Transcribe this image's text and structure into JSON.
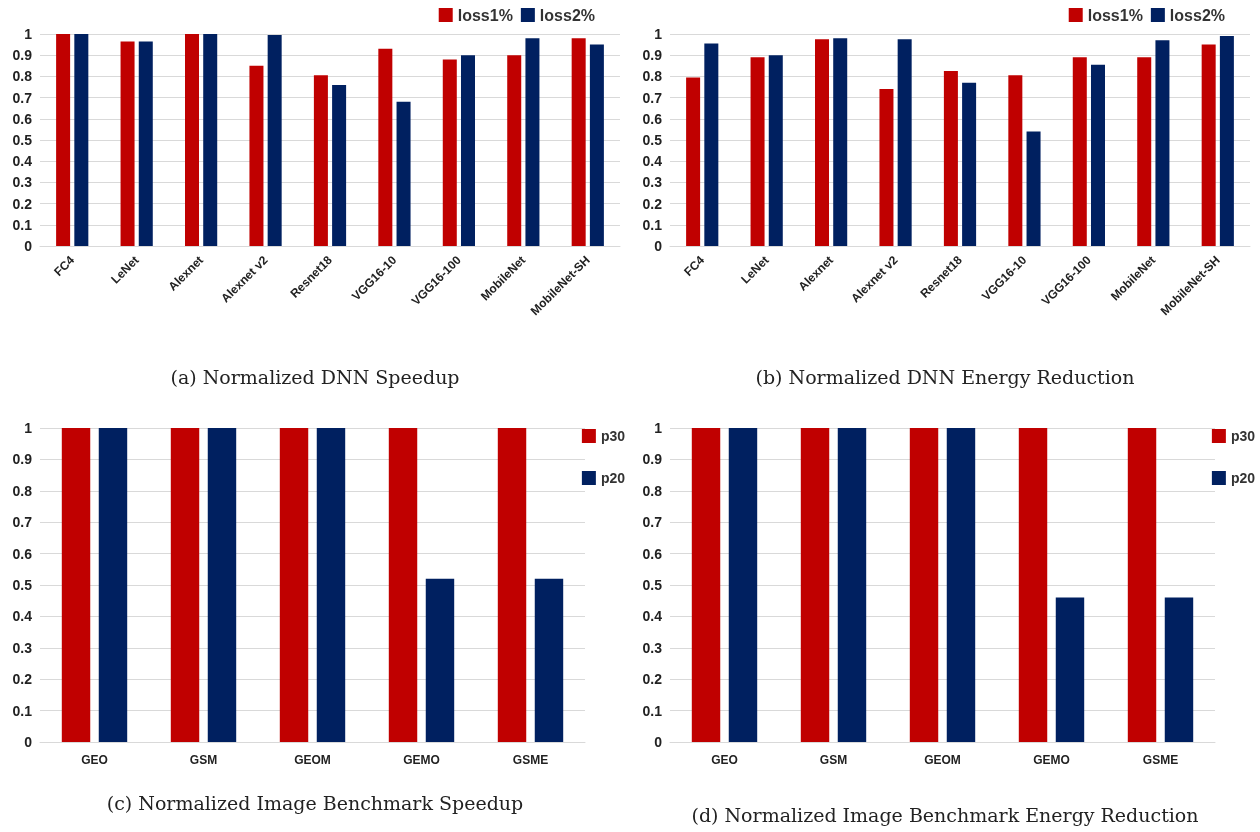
{
  "chart_data": [
    {
      "type": "bar",
      "title": "(a) Normalized DNN Speedup",
      "categories": [
        "FC4",
        "LeNet",
        "Alexnet",
        "Alexnet v2",
        "Resnet18",
        "VGG16-10",
        "VGG16-100",
        "MobileNet",
        "MobileNet-SH"
      ],
      "series": [
        {
          "name": "loss1%",
          "color": "#c00000",
          "values": [
            1,
            0.965,
            1,
            0.85,
            0.805,
            0.93,
            0.88,
            0.9,
            0.98
          ]
        },
        {
          "name": "loss2%",
          "color": "#002060",
          "values": [
            1,
            0.965,
            1,
            0.995,
            0.76,
            0.68,
            0.9,
            0.98,
            0.95
          ]
        }
      ],
      "ylim": [
        0,
        1
      ],
      "yticks": [
        0,
        0.1,
        0.2,
        0.3,
        0.4,
        0.5,
        0.6,
        0.7,
        0.8,
        0.9,
        1
      ],
      "grid": "y",
      "legend": "top right"
    },
    {
      "type": "bar",
      "title": "(b) Normalized DNN Energy Reduction",
      "categories": [
        "FC4",
        "LeNet",
        "Alexnet",
        "Alexnet v2",
        "Resnet18",
        "VGG16-10",
        "VGG16-100",
        "MobileNet",
        "MobileNet-SH"
      ],
      "series": [
        {
          "name": "loss1%",
          "color": "#c00000",
          "values": [
            0.795,
            0.89,
            0.975,
            0.74,
            0.825,
            0.805,
            0.89,
            0.89,
            0.95
          ]
        },
        {
          "name": "loss2%",
          "color": "#002060",
          "values": [
            0.955,
            0.9,
            0.98,
            0.975,
            0.77,
            0.54,
            0.855,
            0.97,
            0.99
          ]
        }
      ],
      "ylim": [
        0,
        1
      ],
      "yticks": [
        0,
        0.1,
        0.2,
        0.3,
        0.4,
        0.5,
        0.6,
        0.7,
        0.8,
        0.9,
        1
      ],
      "grid": "y",
      "legend": "top right"
    },
    {
      "type": "bar",
      "title": "(c) Normalized Image Benchmark Speedup",
      "categories": [
        "GEO",
        "GSM",
        "GEOM",
        "GEMO",
        "GSME"
      ],
      "series": [
        {
          "name": "p30",
          "color": "#c00000",
          "values": [
            1,
            1,
            1,
            1,
            1
          ]
        },
        {
          "name": "p20",
          "color": "#002060",
          "values": [
            1,
            1,
            1,
            0.52,
            0.52
          ]
        }
      ],
      "ylim": [
        0,
        1
      ],
      "yticks": [
        0,
        0.1,
        0.2,
        0.3,
        0.4,
        0.5,
        0.6,
        0.7,
        0.8,
        0.9,
        1
      ],
      "grid": "y",
      "legend": "right"
    },
    {
      "type": "bar",
      "title": "(d) Normalized Image Benchmark Energy Reduction",
      "categories": [
        "GEO",
        "GSM",
        "GEOM",
        "GEMO",
        "GSME"
      ],
      "series": [
        {
          "name": "p30",
          "color": "#c00000",
          "values": [
            1,
            1,
            1,
            1,
            1
          ]
        },
        {
          "name": "p20",
          "color": "#002060",
          "values": [
            1,
            1,
            1,
            0.46,
            0.46
          ]
        }
      ],
      "ylim": [
        0,
        1
      ],
      "yticks": [
        0,
        0.1,
        0.2,
        0.3,
        0.4,
        0.5,
        0.6,
        0.7,
        0.8,
        0.9,
        1
      ],
      "grid": "y",
      "legend": "right"
    }
  ]
}
